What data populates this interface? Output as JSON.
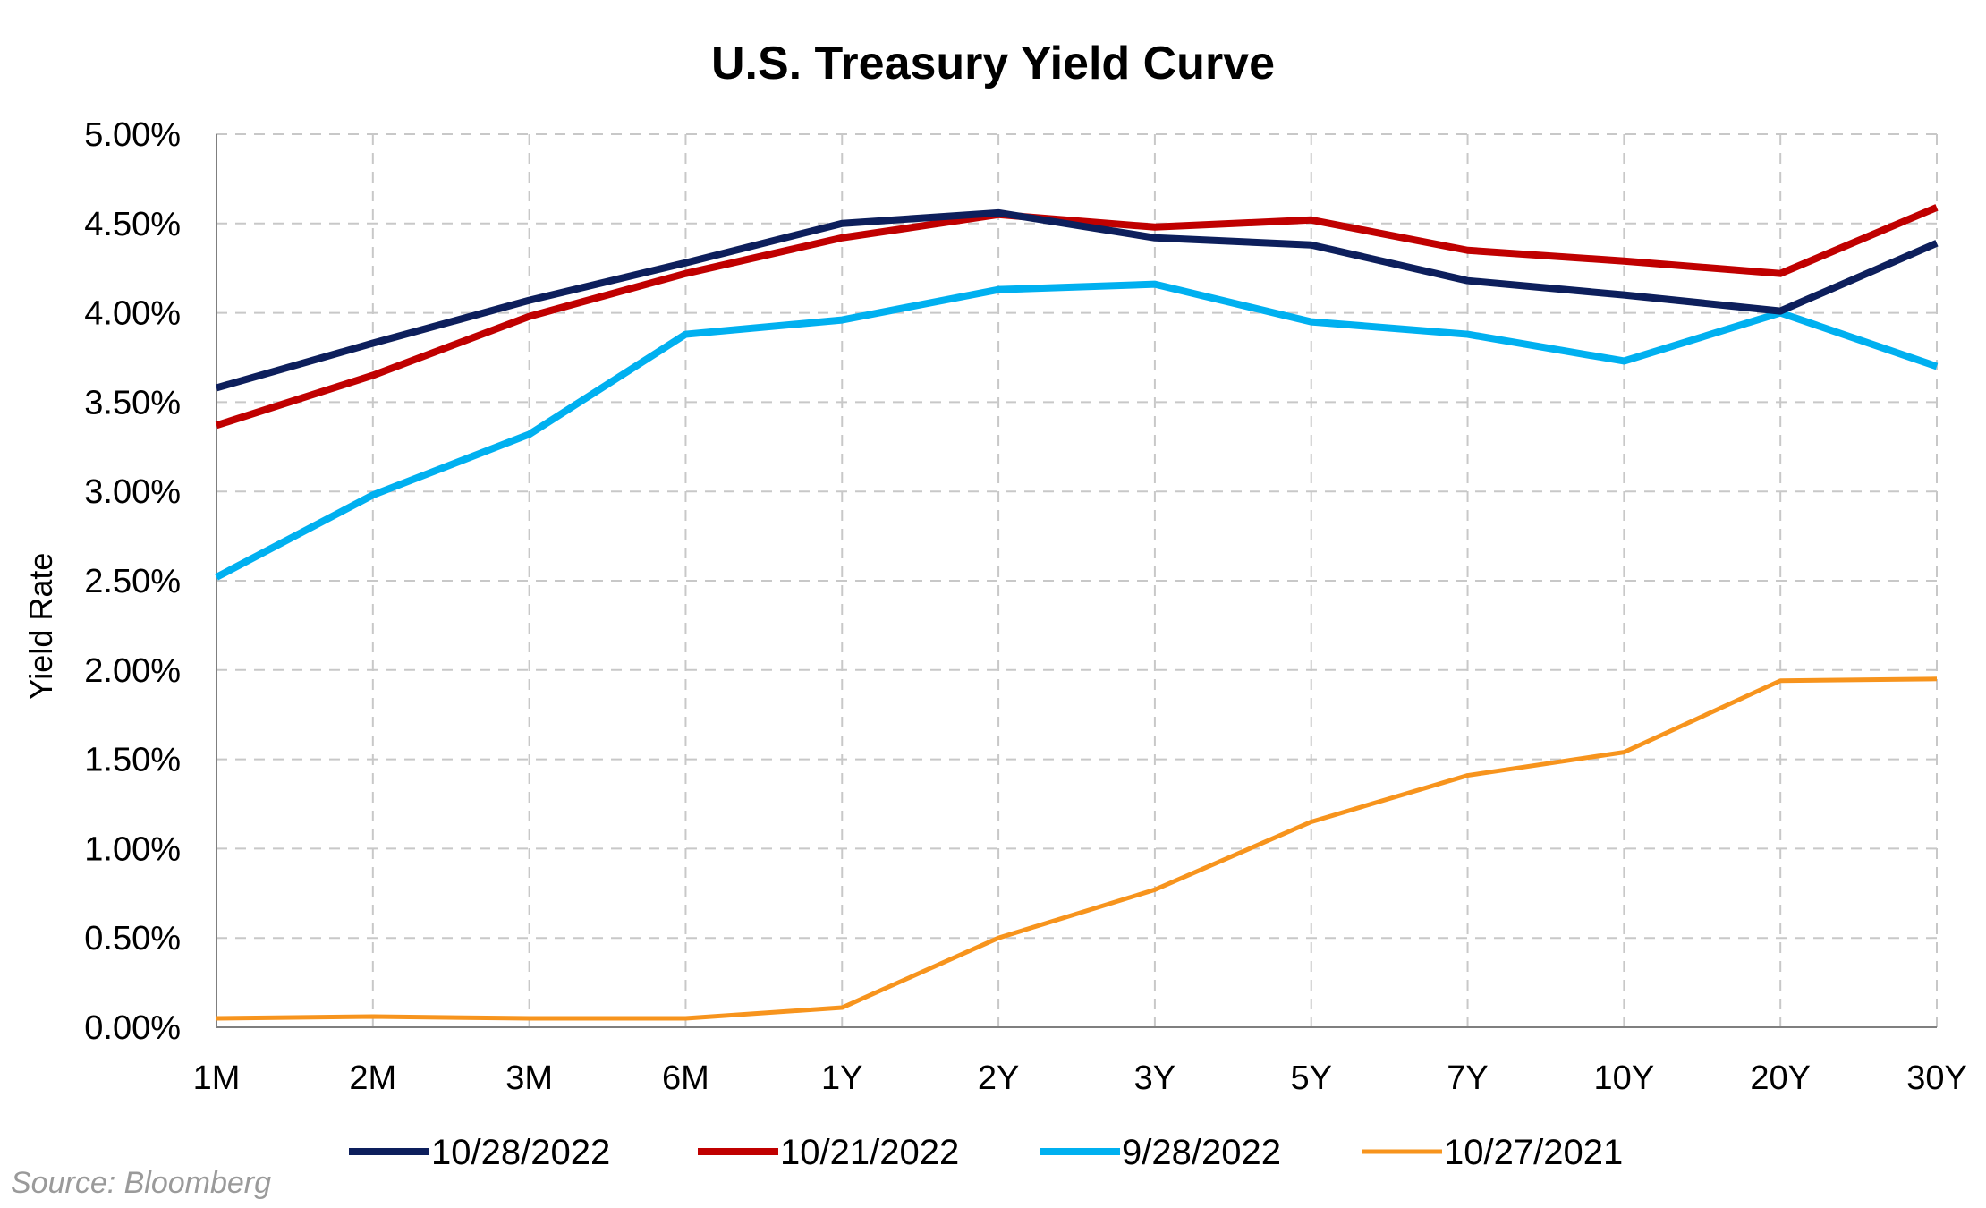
{
  "chart_data": {
    "type": "line",
    "title": "U.S. Treasury Yield Curve",
    "xlabel": "",
    "ylabel": "Yield Rate",
    "categories": [
      "1M",
      "2M",
      "3M",
      "6M",
      "1Y",
      "2Y",
      "3Y",
      "5Y",
      "7Y",
      "10Y",
      "20Y",
      "30Y"
    ],
    "ylim": [
      0,
      5
    ],
    "yticks": [
      "0.00%",
      "0.50%",
      "1.00%",
      "1.50%",
      "2.00%",
      "2.50%",
      "3.00%",
      "3.50%",
      "4.00%",
      "4.50%",
      "5.00%"
    ],
    "grid": true,
    "legend_position": "bottom",
    "series": [
      {
        "name": "10/28/2022",
        "color": "#0d1f5c",
        "values": [
          3.58,
          3.83,
          4.07,
          4.28,
          4.5,
          4.56,
          4.42,
          4.38,
          4.18,
          4.1,
          4.01,
          4.39
        ]
      },
      {
        "name": "10/21/2022",
        "color": "#c00000",
        "values": [
          3.37,
          3.65,
          3.98,
          4.22,
          4.42,
          4.55,
          4.48,
          4.52,
          4.35,
          4.29,
          4.22,
          4.59
        ]
      },
      {
        "name": "9/28/2022",
        "color": "#00b0f0",
        "values": [
          2.52,
          2.98,
          3.32,
          3.88,
          3.96,
          4.13,
          4.16,
          3.95,
          3.88,
          3.73,
          4.0,
          3.7
        ]
      },
      {
        "name": "10/27/2021",
        "color": "#f7941d",
        "values": [
          0.05,
          0.06,
          0.05,
          0.05,
          0.11,
          0.5,
          0.77,
          1.15,
          1.41,
          1.54,
          1.94,
          1.95
        ]
      }
    ],
    "source": "Source: Bloomberg"
  }
}
